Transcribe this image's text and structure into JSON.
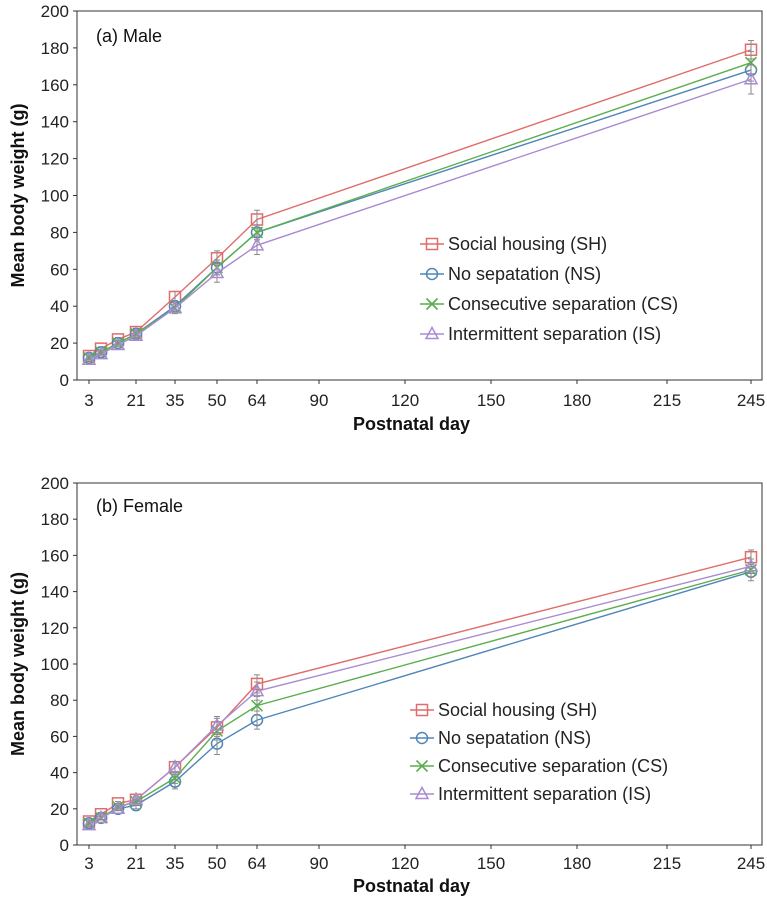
{
  "chart_data": [
    {
      "type": "line",
      "title": "(a) Male",
      "xlabel": "Postnatal day",
      "ylabel": "Mean body weight (g)",
      "ylim": [
        0,
        200
      ],
      "yticks": [
        0,
        20,
        40,
        60,
        80,
        100,
        120,
        140,
        160,
        180,
        200
      ],
      "xtick_labels": [
        "3",
        "21",
        "35",
        "50",
        "64",
        "90",
        "120",
        "150",
        "180",
        "215",
        "245"
      ],
      "x": [
        "3",
        "7",
        "14",
        "21",
        "35",
        "50",
        "64",
        "245"
      ],
      "legend_position": "center-right",
      "series": [
        {
          "name": "Social housing (SH)",
          "color": "#e06c6c",
          "marker": "square",
          "values": [
            13,
            17,
            22,
            26,
            45,
            66,
            87,
            179
          ],
          "err": [
            1,
            1,
            1,
            2,
            3,
            4,
            5,
            5
          ]
        },
        {
          "name": "No sepatation (NS)",
          "color": "#4f86b8",
          "marker": "circle",
          "values": [
            12,
            15,
            20,
            25,
            40,
            61,
            80,
            168
          ],
          "err": [
            1,
            1,
            1,
            2,
            3,
            4,
            4,
            6
          ]
        },
        {
          "name": "Consecutive separation (CS)",
          "color": "#5cae4f",
          "marker": "x",
          "values": [
            12,
            15,
            20,
            25,
            39,
            61,
            80,
            172
          ],
          "err": [
            1,
            1,
            1,
            2,
            3,
            4,
            4,
            6
          ]
        },
        {
          "name": "Intermittent separation (IS)",
          "color": "#a98bd1",
          "marker": "triangle",
          "values": [
            11,
            14,
            19,
            24,
            39,
            58,
            73,
            163
          ],
          "err": [
            1,
            1,
            1,
            2,
            3,
            5,
            5,
            8
          ]
        }
      ]
    },
    {
      "type": "line",
      "title": "(b) Female",
      "xlabel": "Postnatal day",
      "ylabel": "Mean body weight (g)",
      "ylim": [
        0,
        200
      ],
      "yticks": [
        0,
        20,
        40,
        60,
        80,
        100,
        120,
        140,
        160,
        180,
        200
      ],
      "xtick_labels": [
        "3",
        "21",
        "35",
        "50",
        "64",
        "90",
        "120",
        "150",
        "180",
        "215",
        "245"
      ],
      "x": [
        "3",
        "7",
        "14",
        "21",
        "35",
        "50",
        "64",
        "245"
      ],
      "legend_position": "center-right",
      "series": [
        {
          "name": "Social housing (SH)",
          "color": "#e06c6c",
          "marker": "square",
          "values": [
            13,
            17,
            23,
            25,
            43,
            65,
            89,
            159
          ],
          "err": [
            1,
            1,
            1,
            2,
            3,
            5,
            5,
            4
          ]
        },
        {
          "name": "No sepatation (NS)",
          "color": "#4f86b8",
          "marker": "circle",
          "values": [
            12,
            15,
            20,
            22,
            35,
            56,
            69,
            151
          ],
          "err": [
            1,
            1,
            1,
            2,
            4,
            6,
            5,
            5
          ]
        },
        {
          "name": "Consecutive separation (CS)",
          "color": "#5cae4f",
          "marker": "x",
          "values": [
            12,
            15,
            21,
            24,
            37,
            63,
            77,
            152
          ],
          "err": [
            1,
            1,
            1,
            2,
            3,
            5,
            5,
            4
          ]
        },
        {
          "name": "Intermittent separation (IS)",
          "color": "#a98bd1",
          "marker": "triangle",
          "values": [
            11,
            15,
            20,
            25,
            43,
            66,
            85,
            154
          ],
          "err": [
            1,
            1,
            1,
            2,
            3,
            5,
            5,
            4
          ]
        }
      ]
    }
  ]
}
